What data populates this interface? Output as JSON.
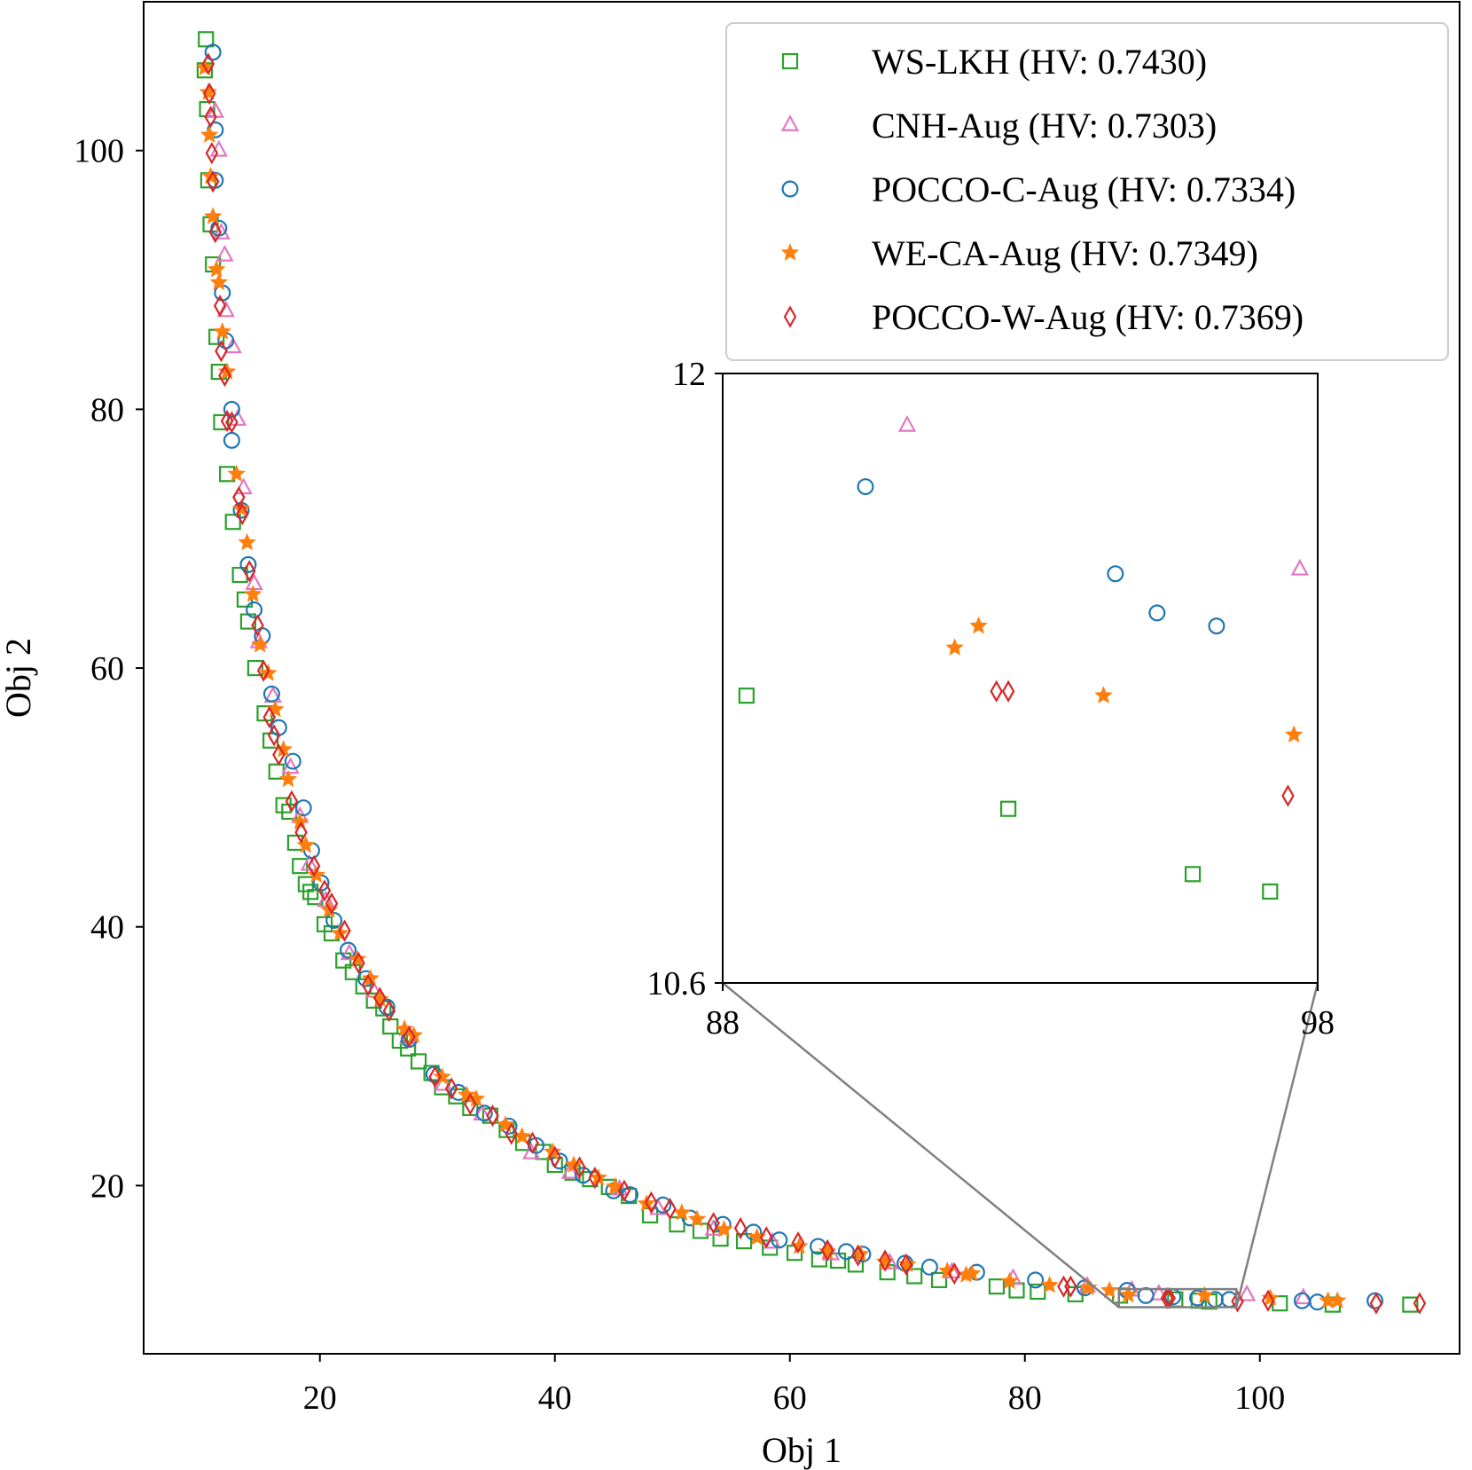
{
  "chart_data": {
    "type": "scatter",
    "xlabel": "Obj 1",
    "ylabel": "Obj 2",
    "xlim": [
      5,
      117
    ],
    "ylim": [
      7,
      111.5
    ],
    "xticks": [
      20,
      40,
      60,
      80,
      100
    ],
    "yticks": [
      20,
      40,
      60,
      80,
      100
    ],
    "grid": false,
    "legend_position": "top-right",
    "series": [
      {
        "name": "WS-LKH (HV: 0.7430)",
        "marker": "square",
        "color": "#2ca02c",
        "points": [
          [
            10.3,
            108.6
          ],
          [
            10.2,
            106.2
          ],
          [
            10.4,
            103.2
          ],
          [
            10.5,
            97.7
          ],
          [
            10.7,
            94.3
          ],
          [
            10.9,
            91.2
          ],
          [
            11.2,
            85.6
          ],
          [
            11.4,
            82.9
          ],
          [
            11.6,
            79
          ],
          [
            12.1,
            75
          ],
          [
            12.6,
            71.3
          ],
          [
            13.2,
            67.2
          ],
          [
            13.6,
            65.3
          ],
          [
            13.9,
            63.6
          ],
          [
            14.5,
            60
          ],
          [
            15.3,
            56.5
          ],
          [
            15.8,
            54.4
          ],
          [
            16.3,
            52
          ],
          [
            16.9,
            49.4
          ],
          [
            17.4,
            48.9
          ],
          [
            17.9,
            46.5
          ],
          [
            18.3,
            44.7
          ],
          [
            18.8,
            43.3
          ],
          [
            19.2,
            42.7
          ],
          [
            19.6,
            42.3
          ],
          [
            20.4,
            40.2
          ],
          [
            21,
            39.5
          ],
          [
            22,
            37.4
          ],
          [
            22.8,
            36.5
          ],
          [
            23.7,
            35.4
          ],
          [
            24.6,
            34.3
          ],
          [
            25.4,
            33.7
          ],
          [
            26,
            32.3
          ],
          [
            26.8,
            31.2
          ],
          [
            27.5,
            30.6
          ],
          [
            28.4,
            29.6
          ],
          [
            29.5,
            28.7
          ],
          [
            30.4,
            27.6
          ],
          [
            31.6,
            26.9
          ],
          [
            32.8,
            26
          ],
          [
            34.5,
            25.4
          ],
          [
            35.9,
            24.3
          ],
          [
            37.3,
            23.3
          ],
          [
            39,
            22.6
          ],
          [
            40,
            21.6
          ],
          [
            41.5,
            21
          ],
          [
            43,
            20.5
          ],
          [
            44.6,
            19.9
          ],
          [
            46.3,
            19.2
          ],
          [
            48.1,
            17.7
          ],
          [
            50.4,
            17
          ],
          [
            52.4,
            16.5
          ],
          [
            54.1,
            15.9
          ],
          [
            56.1,
            15.7
          ],
          [
            58.3,
            15.2
          ],
          [
            60.4,
            14.8
          ],
          [
            62.5,
            14.3
          ],
          [
            64.1,
            14.2
          ],
          [
            65.6,
            13.9
          ],
          [
            68.3,
            13.3
          ],
          [
            70.6,
            13
          ],
          [
            72.7,
            12.7
          ],
          [
            77.6,
            12.2
          ],
          [
            79.3,
            11.9
          ],
          [
            81.1,
            11.8
          ],
          [
            84.3,
            11.6
          ],
          [
            88.1,
            11.5
          ],
          [
            92.8,
            11.2
          ],
          [
            94.8,
            11.1
          ],
          [
            95.7,
            11.04
          ],
          [
            101.7,
            10.9
          ],
          [
            106.2,
            10.8
          ],
          [
            112.8,
            10.8
          ]
        ]
      },
      {
        "name": "CNH-Aug (HV: 0.7303)",
        "marker": "triangle",
        "color": "#e377c2",
        "points": [
          [
            11.1,
            103
          ],
          [
            11.4,
            100
          ],
          [
            11.6,
            93.6
          ],
          [
            11.9,
            91.9
          ],
          [
            12,
            87.6
          ],
          [
            12.6,
            84.8
          ],
          [
            13,
            79.2
          ],
          [
            13.5,
            73.9
          ],
          [
            14.4,
            66.5
          ],
          [
            14.8,
            62
          ],
          [
            16,
            57.8
          ],
          [
            17.5,
            52.3
          ],
          [
            18.3,
            48.5
          ],
          [
            19.1,
            44.8
          ],
          [
            20.5,
            42
          ],
          [
            22.5,
            37.9
          ],
          [
            24.6,
            35
          ],
          [
            27.5,
            31.4
          ],
          [
            30.5,
            27.8
          ],
          [
            33.8,
            25.5
          ],
          [
            38,
            22.5
          ],
          [
            41.3,
            21
          ],
          [
            45.5,
            19.7
          ],
          [
            48.8,
            18.2
          ],
          [
            53.5,
            16.6
          ],
          [
            58.5,
            15.6
          ],
          [
            63.5,
            14.7
          ],
          [
            68.5,
            14
          ],
          [
            73.8,
            13.3
          ],
          [
            79,
            12.8
          ],
          [
            85.3,
            12.2
          ],
          [
            89.1,
            11.89
          ],
          [
            91.4,
            11.6
          ],
          [
            98.9,
            11.54
          ],
          [
            103.7,
            11.3
          ]
        ]
      },
      {
        "name": "POCCO-C-Aug (HV: 0.7334)",
        "marker": "circle",
        "color": "#1f77b4",
        "points": [
          [
            10.9,
            107.6
          ],
          [
            11.1,
            101.6
          ],
          [
            11.1,
            97.7
          ],
          [
            11.4,
            94
          ],
          [
            11.7,
            89
          ],
          [
            12,
            85.3
          ],
          [
            12.5,
            80
          ],
          [
            12.5,
            77.6
          ],
          [
            13.3,
            72.2
          ],
          [
            13.9,
            68
          ],
          [
            14.4,
            64.5
          ],
          [
            15.1,
            62.5
          ],
          [
            15.9,
            58
          ],
          [
            16.5,
            55.4
          ],
          [
            17.7,
            52.8
          ],
          [
            18.6,
            49.2
          ],
          [
            19.3,
            45.9
          ],
          [
            20.1,
            43.4
          ],
          [
            21.2,
            40.5
          ],
          [
            22.4,
            38.2
          ],
          [
            23.9,
            36
          ],
          [
            25.7,
            33.8
          ],
          [
            27.6,
            31.3
          ],
          [
            29.7,
            28.6
          ],
          [
            31.8,
            27.2
          ],
          [
            34,
            25.6
          ],
          [
            36.1,
            24.6
          ],
          [
            38.4,
            23.1
          ],
          [
            40.4,
            21.9
          ],
          [
            42.4,
            20.8
          ],
          [
            45,
            19.6
          ],
          [
            46.4,
            19.3
          ],
          [
            49.2,
            18.5
          ],
          [
            51.5,
            17.5
          ],
          [
            54.3,
            17
          ],
          [
            56.9,
            16.4
          ],
          [
            59.1,
            15.8
          ],
          [
            62.4,
            15.3
          ],
          [
            64.8,
            14.9
          ],
          [
            66.2,
            14.7
          ],
          [
            69.8,
            14
          ],
          [
            71.9,
            13.7
          ],
          [
            75.9,
            13.3
          ],
          [
            80.9,
            12.7
          ],
          [
            85.1,
            12.1
          ],
          [
            88.7,
            11.9
          ],
          [
            90.3,
            11.5
          ],
          [
            92.6,
            11.4
          ],
          [
            94.7,
            11.32
          ],
          [
            96.2,
            11.2
          ],
          [
            97.4,
            11.2
          ],
          [
            103.6,
            11.1
          ],
          [
            104.9,
            11
          ],
          [
            109.8,
            11.1
          ]
        ]
      },
      {
        "name": "WE-CA-Aug (HV: 0.7349)",
        "marker": "star",
        "color": "#ff7f0e",
        "points": [
          [
            10.2,
            106.4
          ],
          [
            10.5,
            104.5
          ],
          [
            10.6,
            101.2
          ],
          [
            10.7,
            98
          ],
          [
            10.9,
            94.9
          ],
          [
            11.2,
            90.8
          ],
          [
            11.4,
            89.8
          ],
          [
            11.7,
            86
          ],
          [
            12.1,
            82.9
          ],
          [
            12.9,
            75
          ],
          [
            13.3,
            72.3
          ],
          [
            13.8,
            69.7
          ],
          [
            14.3,
            65.7
          ],
          [
            14.9,
            61.8
          ],
          [
            15.6,
            59.6
          ],
          [
            16.2,
            56.8
          ],
          [
            16.9,
            53.7
          ],
          [
            17.3,
            51.4
          ],
          [
            18.3,
            48.1
          ],
          [
            18.8,
            46.3
          ],
          [
            19.7,
            44
          ],
          [
            20.8,
            41.3
          ],
          [
            21.7,
            39.5
          ],
          [
            23.2,
            37.5
          ],
          [
            24.3,
            36
          ],
          [
            25.1,
            34.4
          ],
          [
            27.2,
            32.1
          ],
          [
            28,
            31.6
          ],
          [
            30.4,
            28.4
          ],
          [
            32.5,
            27
          ],
          [
            33.3,
            26.7
          ],
          [
            35.8,
            24.7
          ],
          [
            37.2,
            23.8
          ],
          [
            39.8,
            22.6
          ],
          [
            41.6,
            21.6
          ],
          [
            43.7,
            20.6
          ],
          [
            45.1,
            19.9
          ],
          [
            47.8,
            18.6
          ],
          [
            50.8,
            17.9
          ],
          [
            52.1,
            17.4
          ],
          [
            54.4,
            16.6
          ],
          [
            57.2,
            16
          ],
          [
            60.8,
            15.3
          ],
          [
            63.2,
            14.9
          ],
          [
            66,
            14.7
          ],
          [
            68.1,
            14.1
          ],
          [
            70,
            13.9
          ],
          [
            73.4,
            13.4
          ],
          [
            75,
            13.1
          ],
          [
            75.5,
            13.2
          ],
          [
            78.7,
            12.6
          ],
          [
            82.1,
            12.3
          ],
          [
            85.4,
            12.1
          ],
          [
            87.2,
            11.9
          ],
          [
            88.8,
            11.55
          ],
          [
            95.3,
            11.5
          ],
          [
            100.9,
            11.3
          ],
          [
            105.8,
            11.1
          ],
          [
            106.6,
            11.1
          ]
        ]
      },
      {
        "name": "POCCO-W-Aug (HV: 0.7369)",
        "marker": "diamond",
        "color": "#d62728",
        "points": [
          [
            10.5,
            106.7
          ],
          [
            10.6,
            104.4
          ],
          [
            10.7,
            102.6
          ],
          [
            10.8,
            99.8
          ],
          [
            10.9,
            97.6
          ],
          [
            11.1,
            93.7
          ],
          [
            11.5,
            88
          ],
          [
            11.6,
            84.5
          ],
          [
            11.9,
            82.6
          ],
          [
            12.1,
            79.1
          ],
          [
            12.5,
            79
          ],
          [
            13.1,
            73.2
          ],
          [
            13.4,
            71.9
          ],
          [
            14,
            67.5
          ],
          [
            14.7,
            63.3
          ],
          [
            15.2,
            59.8
          ],
          [
            15.7,
            56.2
          ],
          [
            16.1,
            54.8
          ],
          [
            16.5,
            53.3
          ],
          [
            17.6,
            49.7
          ],
          [
            18.4,
            47.3
          ],
          [
            19.5,
            44.7
          ],
          [
            20.4,
            42.8
          ],
          [
            21,
            41.8
          ],
          [
            22.1,
            39.7
          ],
          [
            23.3,
            37.2
          ],
          [
            24.1,
            35.5
          ],
          [
            25.1,
            34.5
          ],
          [
            25.9,
            33.5
          ],
          [
            27.6,
            31.5
          ],
          [
            29.8,
            28.4
          ],
          [
            31.2,
            27.5
          ],
          [
            32.8,
            26.3
          ],
          [
            34.7,
            25.4
          ],
          [
            36.3,
            24
          ],
          [
            38.1,
            23.3
          ],
          [
            40,
            22.2
          ],
          [
            42.1,
            21.4
          ],
          [
            43.4,
            20.6
          ],
          [
            45.9,
            19.6
          ],
          [
            48.2,
            18.7
          ],
          [
            49.8,
            18.2
          ],
          [
            53.5,
            17.1
          ],
          [
            55.8,
            16.7
          ],
          [
            58,
            16
          ],
          [
            60.7,
            15.6
          ],
          [
            63.2,
            15
          ],
          [
            65.8,
            14.6
          ],
          [
            68.1,
            14.2
          ],
          [
            69.9,
            13.9
          ],
          [
            74,
            13.2
          ],
          [
            83.3,
            12.2
          ],
          [
            83.9,
            12.2
          ],
          [
            92.1,
            11.3
          ],
          [
            92.3,
            11.3
          ],
          [
            98.1,
            11.05
          ],
          [
            100.7,
            11.1
          ],
          [
            109.9,
            10.9
          ],
          [
            113.6,
            10.9
          ]
        ]
      }
    ],
    "inset": {
      "xlim": [
        88,
        98
      ],
      "ylim": [
        10.6,
        12
      ],
      "xticks": [
        88,
        98
      ],
      "yticks": [
        10.6,
        12
      ],
      "series": [
        {
          "name": "WS-LKH (HV: 0.7430)",
          "points": [
            [
              88.4,
              11.26
            ],
            [
              92.8,
              11.0
            ],
            [
              95.9,
              10.85
            ],
            [
              97.2,
              10.81
            ]
          ]
        },
        {
          "name": "CNH-Aug (HV: 0.7303)",
          "points": [
            [
              91.1,
              11.88
            ],
            [
              97.7,
              11.55
            ]
          ]
        },
        {
          "name": "POCCO-C-Aug (HV: 0.7334)",
          "points": [
            [
              90.4,
              11.74
            ],
            [
              94.6,
              11.54
            ],
            [
              95.3,
              11.45
            ],
            [
              96.3,
              11.42
            ]
          ]
        },
        {
          "name": "WE-CA-Aug (HV: 0.7349)",
          "points": [
            [
              91.9,
              11.37
            ],
            [
              92.3,
              11.42
            ],
            [
              94.4,
              11.26
            ],
            [
              97.6,
              11.17
            ]
          ]
        },
        {
          "name": "POCCO-W-Aug (HV: 0.7369)",
          "points": [
            [
              92.6,
              11.27
            ],
            [
              92.8,
              11.27
            ],
            [
              97.5,
              11.03
            ]
          ]
        }
      ]
    }
  }
}
